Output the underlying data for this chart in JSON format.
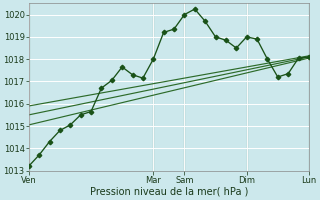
{
  "bg_color": "#cce8ec",
  "plot_bg_color": "#cce8ec",
  "grid_color": "#ffffff",
  "vline_color": "#4a6a4a",
  "line_color_dark": "#1a5218",
  "line_color_thin": "#2d6b2a",
  "xlabel": "Pression niveau de la mer( hPa )",
  "ylim": [
    1013,
    1020.5
  ],
  "yticks": [
    1013,
    1014,
    1015,
    1016,
    1017,
    1018,
    1019,
    1020
  ],
  "title": "",
  "xtick_labels": [
    "Ven",
    "Mar",
    "Sam",
    "Dim",
    "Lun"
  ],
  "xtick_positions": [
    0,
    12,
    15,
    21,
    27
  ],
  "vline_positions": [
    0,
    12,
    15,
    21,
    27
  ],
  "series1_x": [
    0,
    1,
    2,
    3,
    4,
    5,
    6,
    7,
    8,
    9,
    10,
    11,
    12,
    13,
    14,
    15,
    16,
    17,
    18,
    19,
    20,
    21,
    22,
    23,
    24,
    25,
    26,
    27
  ],
  "series1_y": [
    1013.2,
    1013.7,
    1014.3,
    1014.8,
    1015.05,
    1015.5,
    1015.65,
    1016.7,
    1017.05,
    1017.65,
    1017.3,
    1017.15,
    1018.0,
    1019.2,
    1019.35,
    1020.0,
    1020.25,
    1019.7,
    1019.0,
    1018.85,
    1018.5,
    1019.0,
    1018.9,
    1018.0,
    1017.2,
    1017.35,
    1018.05,
    1018.1
  ],
  "series2_x": [
    0,
    27
  ],
  "series2_y": [
    1015.05,
    1018.05
  ],
  "series3_x": [
    0,
    27
  ],
  "series3_y": [
    1015.5,
    1018.1
  ],
  "series4_x": [
    0,
    27
  ],
  "series4_y": [
    1015.9,
    1018.15
  ],
  "n_points": 28
}
